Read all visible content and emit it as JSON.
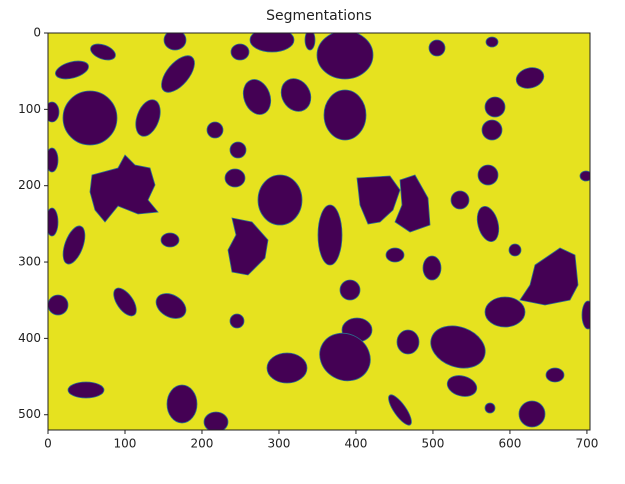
{
  "chart_data": {
    "type": "image",
    "title": "Segmentations",
    "xlim": [
      0,
      704
    ],
    "ylim": [
      520,
      0
    ],
    "xticks": [
      0,
      100,
      200,
      300,
      400,
      500,
      600,
      700
    ],
    "yticks": [
      0,
      100,
      200,
      300,
      400,
      500
    ]
  }
}
